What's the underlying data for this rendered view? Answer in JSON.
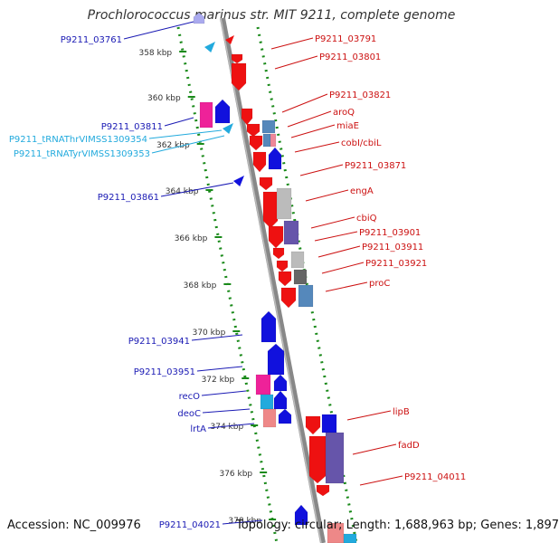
{
  "title": "Prochlorococcus marinus str. MIT 9211, complete genome",
  "accession": "Accession: NC_009976",
  "summary": "Topology: circular; Length: 1,688,963 bp; Genes: 1,897",
  "colors": {
    "backbone": "#888888",
    "ruler": "#1a8a1a",
    "forward_gene": "#ee1111",
    "reverse_gene": "#1111dd",
    "trna": "#22aadd",
    "rna_magenta": "#ee2299",
    "salmon": "#ee8888",
    "gray_light": "#bbbbbb",
    "gray_dark": "#666666",
    "purple": "#6655aa",
    "steel": "#5588bb",
    "label_blue": "#1a1ab4",
    "label_red": "#cc1111",
    "label_cyan": "#22aadd"
  },
  "ticks": [
    "358 kbp",
    "360 kbp",
    "362 kbp",
    "364 kbp",
    "366 kbp",
    "368 kbp",
    "370 kbp",
    "372 kbp",
    "374 kbp",
    "376 kbp",
    "378 kbp"
  ],
  "left_labels": [
    {
      "text": "P9211_03761",
      "color": "blue"
    },
    {
      "text": "P9211_03811",
      "color": "blue"
    },
    {
      "text": "P9211_tRNAThrVIMSS1309354",
      "color": "cyan"
    },
    {
      "text": "P9211_tRNATyrVIMSS1309353",
      "color": "cyan"
    },
    {
      "text": "P9211_03861",
      "color": "blue"
    },
    {
      "text": "P9211_03941",
      "color": "blue"
    },
    {
      "text": "P9211_03951",
      "color": "blue"
    },
    {
      "text": "recO",
      "color": "blue"
    },
    {
      "text": "deoC",
      "color": "blue"
    },
    {
      "text": "lrtA",
      "color": "blue"
    },
    {
      "text": "P9211_04021",
      "color": "blue"
    }
  ],
  "right_labels": [
    {
      "text": "P9211_03791",
      "color": "red"
    },
    {
      "text": "P9211_03801",
      "color": "red"
    },
    {
      "text": "P9211_03821",
      "color": "red"
    },
    {
      "text": "aroQ",
      "color": "red"
    },
    {
      "text": "miaE",
      "color": "red"
    },
    {
      "text": "cobI/cbiL",
      "color": "red"
    },
    {
      "text": "P9211_03871",
      "color": "red"
    },
    {
      "text": "engA",
      "color": "red"
    },
    {
      "text": "cbiQ",
      "color": "red"
    },
    {
      "text": "P9211_03901",
      "color": "red"
    },
    {
      "text": "P9211_03911",
      "color": "red"
    },
    {
      "text": "P9211_03921",
      "color": "red"
    },
    {
      "text": "proC",
      "color": "red"
    },
    {
      "text": "lipB",
      "color": "red"
    },
    {
      "text": "fadD",
      "color": "red"
    },
    {
      "text": "P9211_04011",
      "color": "red"
    }
  ]
}
